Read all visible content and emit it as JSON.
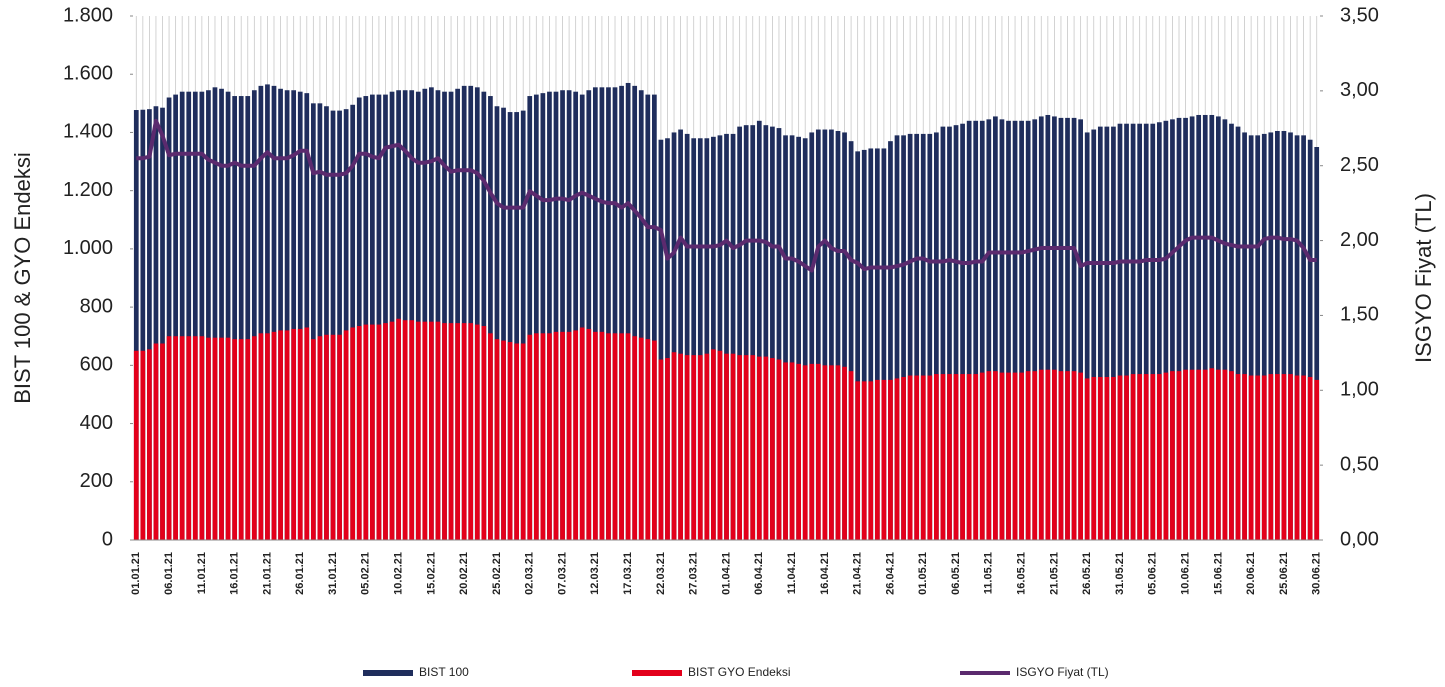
{
  "chart_data": {
    "type": "bar",
    "categories": [
      "01.01.21",
      null,
      null,
      null,
      null,
      "06.01.21",
      null,
      null,
      null,
      null,
      "11.01.21",
      null,
      null,
      null,
      null,
      "16.01.21",
      null,
      null,
      null,
      null,
      "21.01.21",
      null,
      null,
      null,
      null,
      "26.01.21",
      null,
      null,
      null,
      null,
      "31.01.21",
      null,
      null,
      null,
      null,
      "05.02.21",
      null,
      null,
      null,
      null,
      "10.02.21",
      null,
      null,
      null,
      null,
      "15.02.21",
      null,
      null,
      null,
      null,
      "20.02.21",
      null,
      null,
      null,
      null,
      "25.02.21",
      null,
      null,
      null,
      null,
      "02.03.21",
      null,
      null,
      null,
      null,
      "07.03.21",
      null,
      null,
      null,
      null,
      "12.03.21",
      null,
      null,
      null,
      null,
      "17.03.21",
      null,
      null,
      null,
      null,
      "22.03.21",
      null,
      null,
      null,
      null,
      "27.03.21",
      null,
      null,
      null,
      null,
      "01.04.21",
      null,
      null,
      null,
      null,
      "06.04.21",
      null,
      null,
      null,
      null,
      "11.04.21",
      null,
      null,
      null,
      null,
      "16.04.21",
      null,
      null,
      null,
      null,
      "21.04.21",
      null,
      null,
      null,
      null,
      "26.04.21",
      null,
      null,
      null,
      null,
      "01.05.21",
      null,
      null,
      null,
      null,
      "06.05.21",
      null,
      null,
      null,
      null,
      "11.05.21",
      null,
      null,
      null,
      null,
      "16.05.21",
      null,
      null,
      null,
      null,
      "21.05.21",
      null,
      null,
      null,
      null,
      "26.05.21",
      null,
      null,
      null,
      null,
      "31.05.21",
      null,
      null,
      null,
      null,
      "05.06.21",
      null,
      null,
      null,
      null,
      "10.06.21",
      null,
      null,
      null,
      null,
      "15.06.21",
      null,
      null,
      null,
      null,
      "20.06.21",
      null,
      null,
      null,
      null,
      "25.06.21",
      null,
      null,
      null,
      null,
      "30.06.21"
    ],
    "series": [
      {
        "name": "BIST 100",
        "color": "#1f2d5c",
        "values": [
          1477,
          1478,
          1480,
          1490,
          1485,
          1520,
          1530,
          1540,
          1540,
          1540,
          1540,
          1545,
          1555,
          1550,
          1540,
          1525,
          1525,
          1525,
          1545,
          1560,
          1565,
          1560,
          1550,
          1545,
          1545,
          1540,
          1535,
          1500,
          1500,
          1490,
          1475,
          1475,
          1480,
          1495,
          1520,
          1525,
          1530,
          1530,
          1530,
          1540,
          1545,
          1545,
          1545,
          1540,
          1550,
          1555,
          1545,
          1540,
          1540,
          1550,
          1560,
          1560,
          1555,
          1540,
          1525,
          1490,
          1485,
          1470,
          1470,
          1475,
          1525,
          1530,
          1535,
          1540,
          1540,
          1545,
          1545,
          1540,
          1530,
          1545,
          1555,
          1555,
          1555,
          1555,
          1560,
          1570,
          1560,
          1545,
          1530,
          1530,
          1375,
          1380,
          1400,
          1410,
          1395,
          1380,
          1380,
          1380,
          1385,
          1390,
          1395,
          1395,
          1420,
          1425,
          1425,
          1440,
          1425,
          1420,
          1415,
          1390,
          1390,
          1385,
          1380,
          1400,
          1410,
          1410,
          1410,
          1405,
          1400,
          1370,
          1335,
          1340,
          1345,
          1345,
          1345,
          1370,
          1390,
          1390,
          1395,
          1395,
          1395,
          1395,
          1400,
          1420,
          1420,
          1425,
          1430,
          1440,
          1440,
          1440,
          1445,
          1455,
          1445,
          1440,
          1440,
          1440,
          1440,
          1445,
          1455,
          1460,
          1455,
          1450,
          1450,
          1450,
          1445,
          1400,
          1410,
          1420,
          1420,
          1420,
          1430,
          1430,
          1430,
          1430,
          1430,
          1430,
          1435,
          1440,
          1445,
          1450,
          1450,
          1455,
          1460,
          1460,
          1460,
          1455,
          1445,
          1430,
          1420,
          1400,
          1390,
          1390,
          1395,
          1400,
          1405,
          1405,
          1400,
          1390,
          1390,
          1375,
          1350
        ]
      },
      {
        "name": "BIST GYO Endeksi",
        "color": "#e3001b",
        "values": [
          650,
          650,
          655,
          675,
          675,
          700,
          700,
          700,
          700,
          700,
          700,
          695,
          695,
          695,
          695,
          690,
          690,
          690,
          700,
          710,
          710,
          715,
          720,
          720,
          725,
          725,
          730,
          690,
          700,
          705,
          705,
          705,
          720,
          730,
          735,
          740,
          740,
          740,
          745,
          750,
          760,
          755,
          755,
          750,
          750,
          750,
          750,
          745,
          745,
          745,
          745,
          745,
          740,
          735,
          710,
          690,
          685,
          680,
          675,
          675,
          705,
          710,
          710,
          710,
          715,
          715,
          715,
          720,
          730,
          725,
          715,
          715,
          710,
          710,
          710,
          710,
          700,
          695,
          690,
          685,
          620,
          625,
          645,
          640,
          635,
          635,
          635,
          640,
          655,
          650,
          640,
          640,
          635,
          635,
          635,
          630,
          630,
          625,
          620,
          610,
          610,
          605,
          600,
          605,
          605,
          600,
          600,
          600,
          595,
          580,
          545,
          545,
          545,
          550,
          550,
          550,
          555,
          560,
          565,
          565,
          565,
          565,
          570,
          570,
          570,
          570,
          570,
          570,
          570,
          575,
          580,
          580,
          575,
          575,
          575,
          575,
          580,
          580,
          585,
          585,
          585,
          580,
          580,
          580,
          575,
          555,
          560,
          560,
          560,
          560,
          565,
          565,
          570,
          570,
          570,
          570,
          570,
          575,
          580,
          580,
          585,
          585,
          585,
          585,
          590,
          585,
          585,
          580,
          570,
          570,
          565,
          565,
          565,
          570,
          570,
          570,
          570,
          565,
          565,
          560,
          550
        ]
      },
      {
        "name": "ISGYO Fiyat (TL)",
        "color": "#5b2a6e",
        "axis": "y2",
        "values": [
          2.55,
          2.55,
          2.56,
          2.8,
          2.7,
          2.57,
          2.58,
          2.58,
          2.58,
          2.58,
          2.58,
          2.54,
          2.52,
          2.5,
          2.5,
          2.52,
          2.5,
          2.5,
          2.5,
          2.55,
          2.59,
          2.55,
          2.55,
          2.55,
          2.57,
          2.6,
          2.6,
          2.45,
          2.46,
          2.44,
          2.44,
          2.44,
          2.45,
          2.5,
          2.58,
          2.58,
          2.56,
          2.55,
          2.62,
          2.63,
          2.64,
          2.6,
          2.55,
          2.52,
          2.52,
          2.53,
          2.55,
          2.5,
          2.46,
          2.47,
          2.47,
          2.47,
          2.45,
          2.4,
          2.32,
          2.25,
          2.22,
          2.22,
          2.22,
          2.22,
          2.33,
          2.3,
          2.27,
          2.27,
          2.28,
          2.28,
          2.27,
          2.3,
          2.32,
          2.3,
          2.28,
          2.26,
          2.25,
          2.25,
          2.22,
          2.25,
          2.2,
          2.15,
          2.09,
          2.09,
          2.07,
          1.88,
          1.92,
          2.02,
          1.96,
          1.96,
          1.96,
          1.96,
          1.96,
          1.97,
          2.0,
          1.95,
          1.97,
          2.0,
          2.0,
          2.0,
          1.99,
          1.96,
          1.96,
          1.88,
          1.88,
          1.86,
          1.83,
          1.8,
          1.96,
          2.0,
          1.95,
          1.93,
          1.93,
          1.87,
          1.85,
          1.81,
          1.82,
          1.82,
          1.82,
          1.82,
          1.83,
          1.84,
          1.86,
          1.88,
          1.88,
          1.86,
          1.86,
          1.86,
          1.87,
          1.86,
          1.85,
          1.85,
          1.86,
          1.86,
          1.92,
          1.92,
          1.92,
          1.92,
          1.92,
          1.92,
          1.93,
          1.94,
          1.95,
          1.95,
          1.95,
          1.95,
          1.95,
          1.95,
          1.83,
          1.85,
          1.85,
          1.85,
          1.85,
          1.85,
          1.86,
          1.86,
          1.86,
          1.86,
          1.87,
          1.87,
          1.87,
          1.88,
          1.92,
          1.96,
          2.0,
          2.02,
          2.02,
          2.02,
          2.02,
          2.0,
          1.98,
          1.97,
          1.96,
          1.96,
          1.96,
          1.96,
          2.01,
          2.02,
          2.02,
          2.01,
          2.01,
          2.0,
          1.95,
          1.87,
          1.87
        ]
      }
    ],
    "ylabel": "BIST 100 & GYO Endeksi",
    "y2label": "ISGYO Fiyat (TL)",
    "ylim": [
      0,
      1800
    ],
    "yticks": [
      0,
      200,
      400,
      600,
      800,
      {
        "value": 1000,
        "label": "1.000"
      },
      {
        "value": 1200,
        "label": "1.200"
      },
      {
        "value": 1400,
        "label": "1.400"
      },
      {
        "value": 1600,
        "label": "1.600"
      },
      {
        "value": 1800,
        "label": "1.800"
      }
    ],
    "y2lim": [
      0,
      3.5
    ],
    "y2ticks": [
      {
        "value": 0,
        "label": "0,00"
      },
      {
        "value": 0.5,
        "label": "0,50"
      },
      {
        "value": 1,
        "label": "1,00"
      },
      {
        "value": 1.5,
        "label": "1,50"
      },
      {
        "value": 2,
        "label": "2,00"
      },
      {
        "value": 2.5,
        "label": "2,50"
      },
      {
        "value": 3,
        "label": "3,00"
      },
      {
        "value": 3.5,
        "label": "3,50"
      }
    ],
    "legend": "bottom"
  }
}
